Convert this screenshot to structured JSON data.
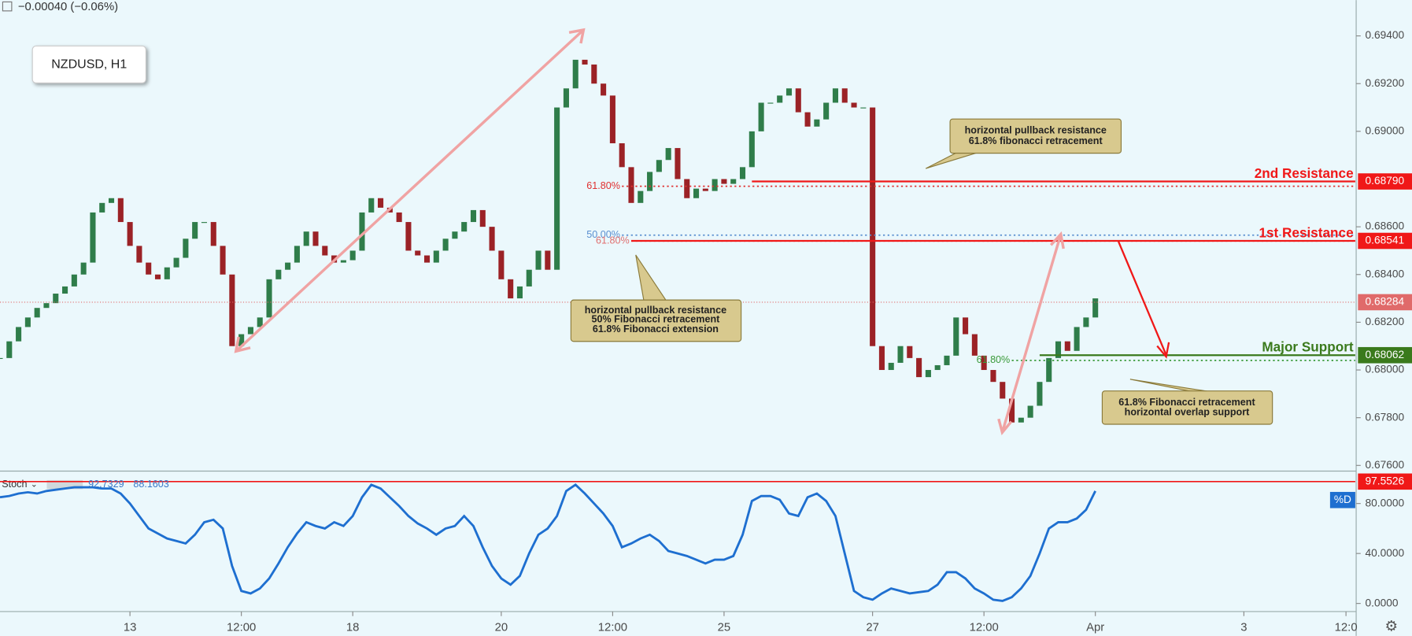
{
  "chart_data": [
    {
      "type": "candlestick",
      "title": "NZDUSD, H1",
      "header": "−0.00040 (−0.06%)",
      "x": [
        0,
        1,
        2,
        3,
        4,
        5,
        6,
        7,
        8,
        9,
        10,
        11,
        12,
        13,
        14,
        15,
        16,
        17,
        18,
        19,
        20,
        21,
        22,
        23,
        24,
        25,
        26,
        27,
        28,
        29,
        30,
        31,
        32,
        33,
        34,
        35,
        36,
        37,
        38,
        39,
        40,
        41,
        42,
        43,
        44,
        45,
        46,
        47,
        48,
        49,
        50,
        51,
        52,
        53,
        54,
        55,
        56,
        57,
        58,
        59,
        60,
        61,
        62,
        63,
        64,
        65,
        66,
        67,
        68,
        69,
        70,
        71,
        72,
        73,
        74,
        75,
        76,
        77,
        78,
        79,
        80,
        81,
        82,
        83,
        84,
        85,
        86,
        87,
        88,
        89,
        90,
        91,
        92,
        93,
        94,
        95,
        96,
        97,
        98,
        99,
        100,
        101,
        102,
        103,
        104,
        105,
        106,
        107,
        108,
        109,
        110,
        111,
        112,
        113,
        114,
        115,
        116,
        117,
        118
      ],
      "close": [
        0.6805,
        0.6812,
        0.6818,
        0.6822,
        0.6826,
        0.6828,
        0.6832,
        0.6835,
        0.684,
        0.6845,
        0.6866,
        0.687,
        0.6872,
        0.6862,
        0.6852,
        0.6845,
        0.684,
        0.6838,
        0.6843,
        0.6847,
        0.6855,
        0.6862,
        0.6862,
        0.6852,
        0.684,
        0.681,
        0.6815,
        0.6818,
        0.6822,
        0.6838,
        0.6842,
        0.6845,
        0.6852,
        0.6858,
        0.6852,
        0.6848,
        0.6845,
        0.6846,
        0.685,
        0.6866,
        0.6872,
        0.6868,
        0.6866,
        0.6862,
        0.685,
        0.6848,
        0.6845,
        0.685,
        0.6855,
        0.6858,
        0.6862,
        0.6867,
        0.686,
        0.685,
        0.6838,
        0.683,
        0.6835,
        0.6842,
        0.685,
        0.6842,
        0.691,
        0.6918,
        0.693,
        0.6928,
        0.692,
        0.6915,
        0.6895,
        0.6885,
        0.687,
        0.6875,
        0.6883,
        0.6888,
        0.6893,
        0.688,
        0.6872,
        0.6876,
        0.6875,
        0.688,
        0.6878,
        0.688,
        0.6885,
        0.69,
        0.6912,
        0.6912,
        0.6915,
        0.6918,
        0.6908,
        0.6902,
        0.6905,
        0.6912,
        0.6918,
        0.6912,
        0.691,
        0.691,
        0.681,
        0.68,
        0.6803,
        0.681,
        0.6805,
        0.6797,
        0.68,
        0.6802,
        0.6806,
        0.6822,
        0.6815,
        0.6806,
        0.68,
        0.6795,
        0.6788,
        0.6778,
        0.678,
        0.6785,
        0.6795,
        0.6805,
        0.6812,
        0.6808,
        0.6818,
        0.6822,
        0.683
      ],
      "up_color": "#2f7d4a",
      "down_color": "#9b2226",
      "xlim": [
        0,
        146
      ],
      "xticks": [
        {
          "value": 14,
          "label": "13"
        },
        {
          "value": 26,
          "label": "12:00"
        },
        {
          "value": 38,
          "label": "18"
        },
        {
          "value": 54,
          "label": "20"
        },
        {
          "value": 66,
          "label": "12:00"
        },
        {
          "value": 78,
          "label": "25"
        },
        {
          "value": 94,
          "label": "27"
        },
        {
          "value": 106,
          "label": "12:00"
        },
        {
          "value": 118,
          "label": "Apr"
        },
        {
          "value": 134,
          "label": "3"
        },
        {
          "value": 145,
          "label": "12:0"
        }
      ],
      "ylim": [
        0.6758,
        0.6955
      ],
      "yticks": [
        {
          "value": 0.694,
          "label": "0.69400"
        },
        {
          "value": 0.692,
          "label": "0.69200"
        },
        {
          "value": 0.69,
          "label": "0.69000"
        },
        {
          "value": 0.686,
          "label": "0.68600"
        },
        {
          "value": 0.684,
          "label": "0.68400"
        },
        {
          "value": 0.682,
          "label": "0.68200"
        },
        {
          "value": 0.68,
          "label": "0.68000"
        },
        {
          "value": 0.678,
          "label": "0.67800"
        },
        {
          "value": 0.676,
          "label": "0.67600"
        }
      ],
      "current": {
        "value": 0.68284,
        "label": "0.68284",
        "color": "#e06a6a"
      },
      "levels": [
        {
          "name": "2nd Resistance",
          "value": 0.6879,
          "label": "0.68790",
          "color": "#f01818",
          "x": 81
        },
        {
          "name": "1st Resistance",
          "value": 0.68541,
          "label": "0.68541",
          "color": "#f01818",
          "x": 68
        },
        {
          "name": "Major Support",
          "value": 0.68062,
          "label": "0.68062",
          "color": "#3a7a1c",
          "x": 112
        }
      ],
      "fibs": [
        {
          "label": "61.80%",
          "value": 0.6877,
          "color": "#e03030",
          "x": 67
        },
        {
          "label": "50.00%",
          "value": 0.68565,
          "color": "#5a8fd0",
          "x": 67
        },
        {
          "label": "61.80%",
          "value": 0.6854,
          "color": "#e07070",
          "x": 68
        },
        {
          "label": "61.80%",
          "value": 0.6804,
          "color": "#3a9a3a",
          "x": 109
        }
      ],
      "annotations": [
        [
          "horizontal pullback resistance",
          "61.8% fibonacci retracement"
        ],
        [
          "horizontal pullback resistance",
          "50% Fibonacci retracement",
          "61.8% Fibonacci extension"
        ],
        [
          "61.8% Fibonacci retracement",
          "horizontal overlap support"
        ]
      ]
    },
    {
      "type": "line",
      "title": "Stoch",
      "readouts": [
        92.7329,
        88.1603
      ],
      "series": [
        {
          "name": "%D",
          "color": "#1e6fd0",
          "values": [
            85,
            86,
            88,
            89,
            88,
            90,
            91,
            92,
            93,
            93,
            93,
            92,
            92,
            88,
            80,
            70,
            60,
            56,
            52,
            50,
            48,
            55,
            65,
            67,
            60,
            30,
            10,
            8,
            12,
            20,
            32,
            45,
            56,
            65,
            62,
            60,
            65,
            62,
            70,
            85,
            95,
            92,
            85,
            78,
            70,
            64,
            60,
            55,
            60,
            62,
            70,
            62,
            45,
            30,
            20,
            15,
            22,
            40,
            55,
            60,
            70,
            90,
            95,
            88,
            80,
            72,
            62,
            45,
            48,
            52,
            55,
            50,
            42,
            40,
            38,
            35,
            32,
            35,
            35,
            38,
            55,
            82,
            86,
            86,
            83,
            72,
            70,
            85,
            88,
            82,
            70,
            40,
            10,
            5,
            3,
            8,
            12,
            10,
            8,
            9,
            10,
            15,
            25,
            25,
            20,
            12,
            8,
            3,
            2,
            5,
            12,
            22,
            40,
            60,
            65,
            65,
            68,
            75,
            90
          ]
        }
      ],
      "level": {
        "value": 97.5526,
        "color": "#f01818"
      },
      "ylim": [
        -5.8,
        104.5
      ],
      "yticks": [
        {
          "value": 80,
          "label": "80.0000"
        },
        {
          "value": 40,
          "label": "40.0000"
        },
        {
          "value": 0,
          "label": "0.0000"
        }
      ]
    }
  ]
}
